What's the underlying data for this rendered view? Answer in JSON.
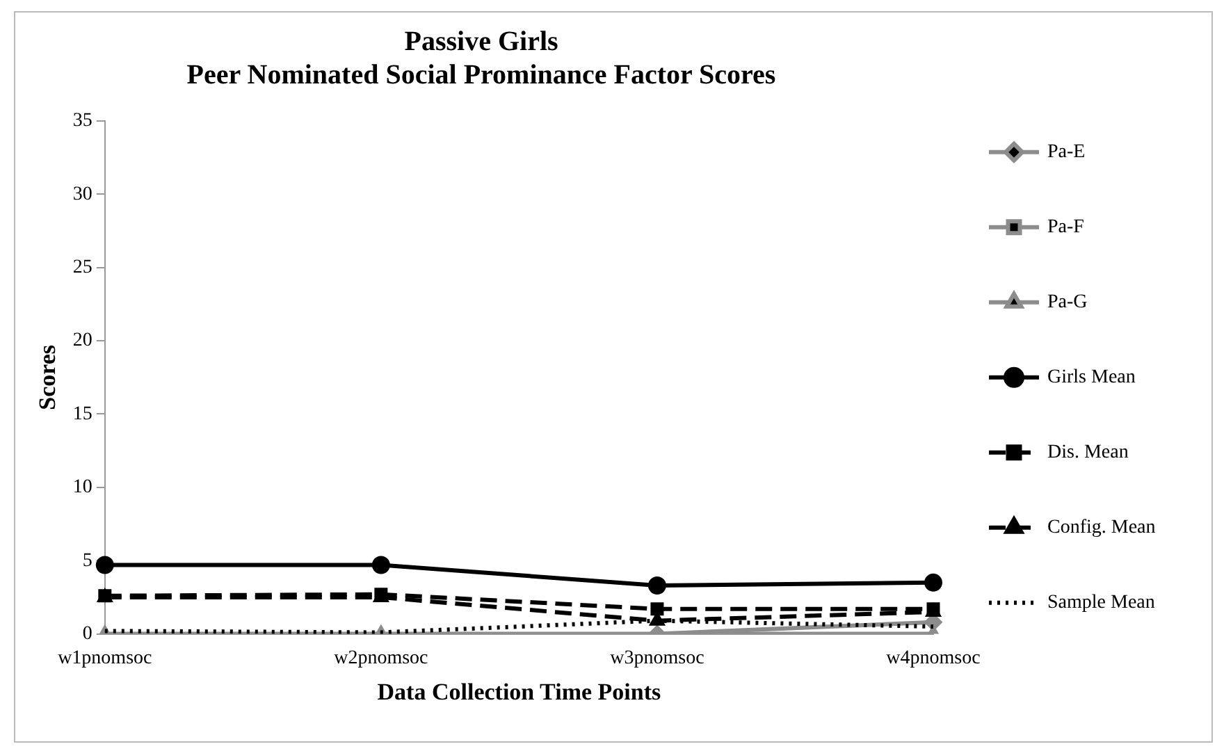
{
  "chart_data": {
    "type": "line",
    "title": "Passive Girls\nPeer Nominated Social Prominance Factor Scores",
    "xlabel": "Data Collection Time Points",
    "ylabel": "Scores",
    "categories": [
      "w1pnomsoc",
      "w2pnomsoc",
      "w3pnomsoc",
      "w4pnomsoc"
    ],
    "series": [
      {
        "name": "Pa-E",
        "color": "#8c8c8c",
        "marker": "diamond",
        "line_style": "solid",
        "values": [
          null,
          null,
          0,
          0.8
        ]
      },
      {
        "name": "Pa-F",
        "color": "#8c8c8c",
        "marker": "square",
        "line_style": "solid",
        "values": [
          null,
          null,
          null,
          null
        ]
      },
      {
        "name": "Pa-G",
        "color": "#8c8c8c",
        "marker": "triangle",
        "line_style": "solid",
        "values": [
          0,
          0,
          0,
          0
        ]
      },
      {
        "name": "Girls Mean",
        "color": "#000000",
        "marker": "circle",
        "line_style": "solid",
        "values": [
          4.7,
          4.7,
          3.3,
          3.5
        ]
      },
      {
        "name": "Dis. Mean",
        "color": "#000000",
        "marker": "square",
        "line_style": "dashed",
        "values": [
          2.6,
          2.7,
          1.7,
          1.7
        ]
      },
      {
        "name": "Config. Mean",
        "color": "#000000",
        "marker": "triangle",
        "line_style": "dashed",
        "values": [
          2.5,
          2.5,
          0.9,
          1.5
        ]
      },
      {
        "name": "Sample Mean",
        "color": "#000000",
        "marker": "none",
        "line_style": "dotted",
        "values": [
          0.2,
          0.1,
          0.9,
          0.5
        ]
      }
    ],
    "ylim": [
      0,
      35
    ],
    "yticks": [
      0,
      5,
      10,
      15,
      20,
      25,
      30,
      35
    ],
    "grid": false,
    "legend": "right"
  }
}
